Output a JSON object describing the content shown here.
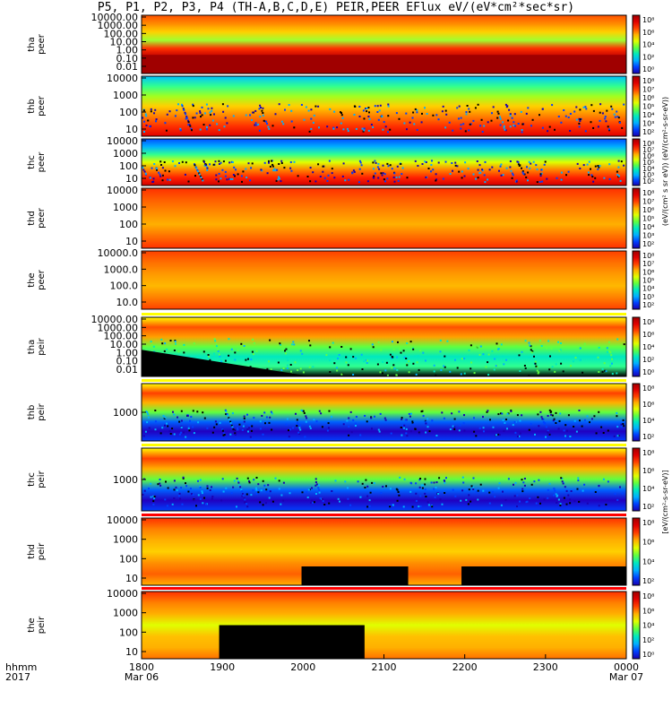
{
  "title": "P5, P1, P2, P3, P4 (TH-A,B,C,D,E) PEIR,PEER EFlux eV/(eV*cm²*sec*sr)",
  "time_axis": {
    "row1_label": "hhmm",
    "row2_label": "2017",
    "ticks": [
      "1800",
      "1900",
      "2000",
      "2100",
      "2200",
      "2300",
      "0000"
    ],
    "date_labels": [
      {
        "at": "1800",
        "text": "Mar 06"
      },
      {
        "at": "0000",
        "text": "Mar 07"
      }
    ]
  },
  "colorbar_label_peer": "(eV/(cm² s sr eV)) (eV/(cm²-s-sr-eV))",
  "colorbar_label_peir": "[eV/(cm²-s-sr-eV)]",
  "colors": {
    "scale": [
      "#1a00b0",
      "#0040ff",
      "#00b0ff",
      "#00e8c0",
      "#60ff40",
      "#e0ff00",
      "#ffb000",
      "#ff4000",
      "#e00000",
      "#a00000"
    ],
    "low_saturation": "#000000",
    "flag_red": "#ff0000",
    "flag_yellow": "#ffff00"
  },
  "chart_data": [
    {
      "type": "heatmap",
      "probe": "tha",
      "instrument": "peer",
      "ylabels": [
        "10000.00",
        "1000.00",
        "100.00",
        "10.00",
        "1.00",
        "0.10",
        "0.01"
      ],
      "cbticks": [
        "10⁸",
        "10⁶",
        "10⁴",
        "10²",
        "10⁰"
      ],
      "ylog": true
    },
    {
      "type": "heatmap",
      "probe": "thb",
      "instrument": "peer",
      "ylabels": [
        "10000",
        "1000",
        "100",
        "10"
      ],
      "cbticks": [
        "10⁸",
        "10⁷",
        "10⁶",
        "10⁵",
        "10⁴",
        "10³",
        "10²"
      ],
      "ylog": true
    },
    {
      "type": "heatmap",
      "probe": "thc",
      "instrument": "peer",
      "ylabels": [
        "10000",
        "1000",
        "100",
        "10"
      ],
      "cbticks": [
        "10⁸",
        "10⁷",
        "10⁶",
        "10⁵",
        "10⁴",
        "10³",
        "10²"
      ],
      "ylog": true
    },
    {
      "type": "heatmap",
      "probe": "thd",
      "instrument": "peer",
      "ylabels": [
        "10000",
        "1000",
        "100",
        "10"
      ],
      "cbticks": [
        "10⁸",
        "10⁷",
        "10⁶",
        "10⁵",
        "10⁴",
        "10³",
        "10²"
      ],
      "ylog": true
    },
    {
      "type": "heatmap",
      "probe": "the",
      "instrument": "peer",
      "ylabels": [
        "10000.0",
        "1000.0",
        "100.0",
        "10.0"
      ],
      "cbticks": [
        "10⁸",
        "10⁷",
        "10⁶",
        "10⁵",
        "10⁴",
        "10³",
        "10²"
      ],
      "ylog": true
    },
    {
      "type": "heatmap",
      "probe": "tha",
      "instrument": "peir",
      "ylabels": [
        "10000.00",
        "1000.00",
        "100.00",
        "10.00",
        "1.00",
        "0.10",
        "0.01"
      ],
      "cbticks": [
        "10⁸",
        "10⁶",
        "10⁴",
        "10²",
        "10⁰"
      ],
      "ylog": true
    },
    {
      "type": "heatmap",
      "probe": "thb",
      "instrument": "peir",
      "ylabels": [
        "1000"
      ],
      "cbticks": [
        "10⁸",
        "10⁶",
        "10⁴",
        "10²"
      ],
      "ylog": true
    },
    {
      "type": "heatmap",
      "probe": "thc",
      "instrument": "peir",
      "ylabels": [
        "1000"
      ],
      "cbticks": [
        "10⁸",
        "10⁶",
        "10⁴",
        "10²"
      ],
      "ylog": true
    },
    {
      "type": "heatmap",
      "probe": "thd",
      "instrument": "peir",
      "ylabels": [
        "10000",
        "1000",
        "100",
        "10"
      ],
      "cbticks": [
        "10⁸",
        "10⁶",
        "10⁴",
        "10²"
      ],
      "ylog": true
    },
    {
      "type": "heatmap",
      "probe": "the",
      "instrument": "peir",
      "ylabels": [
        "10000",
        "1000",
        "100",
        "10"
      ],
      "cbticks": [
        "10⁸",
        "10⁶",
        "10⁴",
        "10²",
        "10⁰"
      ],
      "ylog": true
    }
  ]
}
